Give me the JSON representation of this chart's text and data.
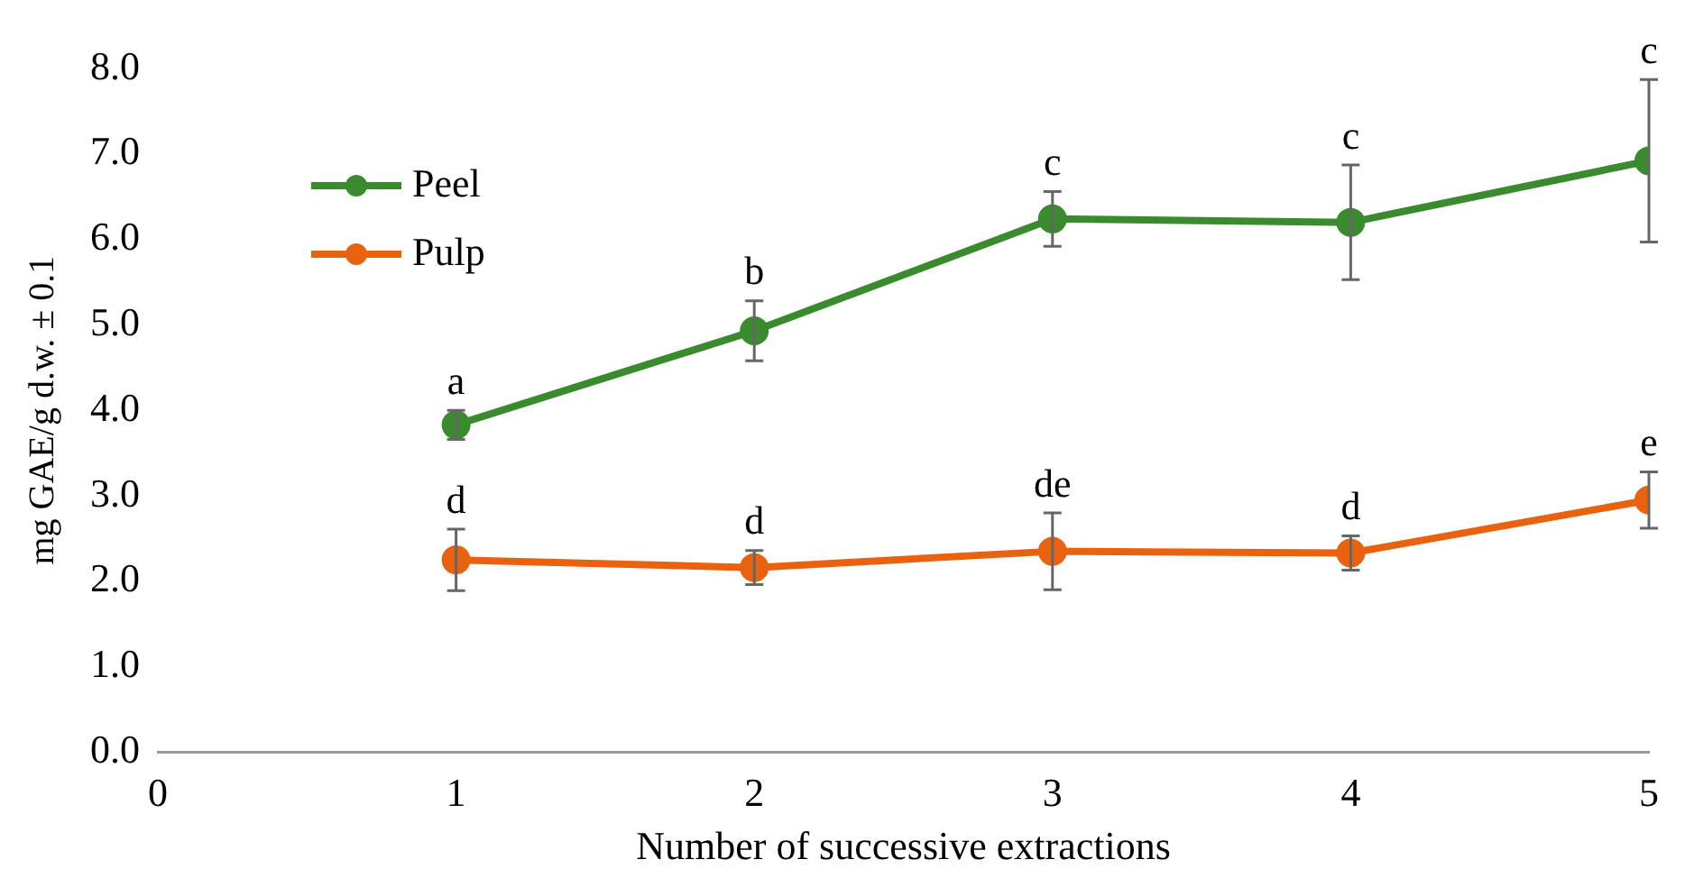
{
  "chart_data": {
    "type": "line",
    "xlabel": "Number of successive extractions",
    "ylabel": "mg GAE/g d.w. ± 0.1",
    "x": [
      1,
      2,
      3,
      4,
      5
    ],
    "xlim": [
      0,
      5
    ],
    "xticks": [
      0,
      1,
      2,
      3,
      4,
      5
    ],
    "ylim": [
      0,
      8
    ],
    "yticks": [
      {
        "value": 0,
        "label": "0.0"
      },
      {
        "value": 1,
        "label": "1.0"
      },
      {
        "value": 2,
        "label": "2.0"
      },
      {
        "value": 3,
        "label": "3.0"
      },
      {
        "value": 4,
        "label": "4.0"
      },
      {
        "value": 5,
        "label": "5.0"
      },
      {
        "value": 6,
        "label": "6.0"
      },
      {
        "value": 7,
        "label": "7.0"
      },
      {
        "value": 8,
        "label": "8.0"
      }
    ],
    "grid": false,
    "legend": "top left",
    "marker": "circle",
    "line_style": "solid",
    "series": [
      {
        "name": "Peel",
        "color": "#3a8a2e",
        "values": [
          3.83,
          4.93,
          6.24,
          6.2,
          6.92
        ],
        "errors": [
          0.17,
          0.35,
          0.32,
          0.67,
          0.95
        ]
      },
      {
        "name": "Pulp",
        "color": "#e8620f",
        "values": [
          2.25,
          2.16,
          2.35,
          2.33,
          2.95
        ],
        "errors": [
          0.36,
          0.2,
          0.45,
          0.2,
          0.33
        ]
      }
    ],
    "annotations": [
      {
        "text": "a",
        "x": 1,
        "y": 3.83
      },
      {
        "text": "b",
        "x": 2,
        "y": 4.93
      },
      {
        "text": "c",
        "x": 3,
        "y": 6.24
      },
      {
        "text": "c",
        "x": 4,
        "y": 6.2
      },
      {
        "text": "c",
        "x": 5,
        "y": 6.92
      },
      {
        "text": "d",
        "x": 1,
        "y": 2.25
      },
      {
        "text": "d",
        "x": 2,
        "y": 2.16
      },
      {
        "text": "de",
        "x": 3,
        "y": 2.35
      },
      {
        "text": "d",
        "x": 4,
        "y": 2.33
      },
      {
        "text": "e",
        "x": 5,
        "y": 2.95
      }
    ]
  }
}
